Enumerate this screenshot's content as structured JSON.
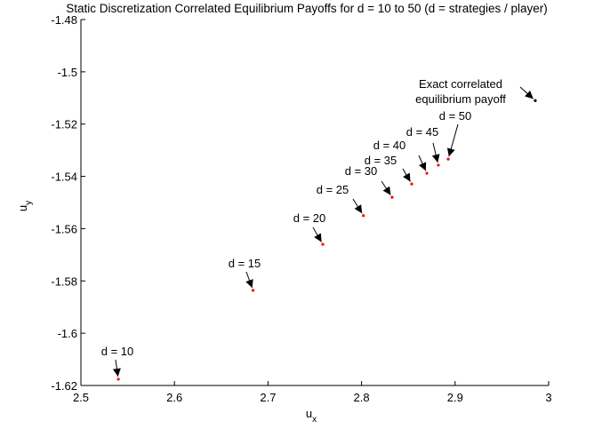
{
  "chart_data": {
    "type": "scatter",
    "title": "Static Discretization Correlated Equilibrium Payoffs for d = 10 to 50 (d = strategies / player)",
    "xlabel": {
      "text": "u",
      "subscript": "x"
    },
    "ylabel": {
      "text": "u",
      "subscript": "y"
    },
    "x": [
      2.54,
      2.684,
      2.7586,
      2.802,
      2.8327,
      2.8536,
      2.8698,
      2.8821,
      2.8926,
      2.9857
    ],
    "values": [
      -1.6176,
      -1.5836,
      -1.566,
      -1.555,
      -1.548,
      -1.5429,
      -1.5388,
      -1.5357,
      -1.5334,
      -1.511
    ],
    "colors": [
      "#ff0000",
      "#ff0000",
      "#ff0000",
      "#ff0000",
      "#ff0000",
      "#ff0000",
      "#ff0000",
      "#ff0000",
      "#ff0000",
      "#000000"
    ],
    "annotations": [
      [
        "d = 10"
      ],
      [
        "d = 15"
      ],
      [
        "d = 20"
      ],
      [
        "d = 25"
      ],
      [
        "d = 30"
      ],
      [
        "d = 35"
      ],
      [
        "d = 40"
      ],
      [
        "d = 45"
      ],
      [
        "d = 50"
      ],
      [
        "Exact correlated",
        "equilibrium payoff"
      ]
    ],
    "xlim": [
      2.5,
      3
    ],
    "xticks": [
      2.5,
      2.6,
      2.7,
      2.8,
      2.9,
      3
    ],
    "ylim": [
      -1.62,
      -1.48
    ],
    "yticks": [
      -1.62,
      -1.6,
      -1.58,
      -1.56,
      -1.54,
      -1.52,
      -1.5,
      -1.48
    ]
  }
}
